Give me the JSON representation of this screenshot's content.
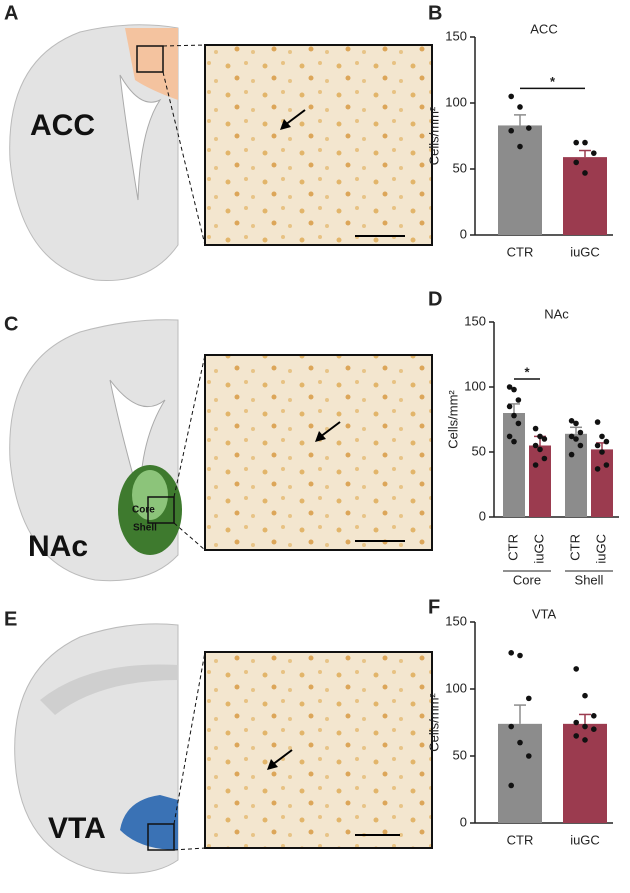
{
  "panels": [
    "A",
    "B",
    "C",
    "D",
    "E",
    "F"
  ],
  "regions": {
    "acc": "ACC",
    "nac": "NAc",
    "core": "Core",
    "shell": "Shell",
    "vta": "VTA"
  },
  "chart_data": [
    {
      "type": "bar",
      "title": "ACC",
      "y_label": "Cells/mm²",
      "categories": [
        "CTR",
        "iuGC"
      ],
      "values": [
        83,
        59
      ],
      "errors": [
        8,
        5
      ],
      "points": [
        [
          105,
          97,
          81,
          79,
          67
        ],
        [
          70,
          70,
          62,
          55,
          47
        ]
      ],
      "colors": [
        "#8c8c8c",
        "#9b3b4f"
      ],
      "ylim": [
        0,
        150
      ],
      "yticks": [
        0,
        50,
        100,
        150
      ],
      "significance": "*"
    },
    {
      "type": "bar",
      "title": "NAc",
      "y_label": "Cells/mm²",
      "categories": [
        "CTR",
        "iuGC",
        "CTR",
        "iuGC"
      ],
      "groups": [
        "Core",
        "Shell"
      ],
      "values": [
        80,
        55,
        64,
        52
      ],
      "errors": [
        7,
        7,
        5,
        5
      ],
      "points": [
        [
          100,
          98,
          90,
          85,
          78,
          72,
          62,
          58
        ],
        [
          68,
          62,
          60,
          55,
          52,
          45,
          40
        ],
        [
          74,
          72,
          65,
          62,
          60,
          55,
          48
        ],
        [
          73,
          62,
          58,
          55,
          50,
          40,
          37
        ]
      ],
      "colors": [
        "#8c8c8c",
        "#9b3b4f",
        "#8c8c8c",
        "#9b3b4f"
      ],
      "ylim": [
        0,
        150
      ],
      "yticks": [
        0,
        50,
        100,
        150
      ],
      "significance": "*"
    },
    {
      "type": "bar",
      "title": "VTA",
      "y_label": "Cells/mm²",
      "categories": [
        "CTR",
        "iuGC"
      ],
      "values": [
        74,
        74
      ],
      "errors": [
        14,
        7
      ],
      "points": [
        [
          127,
          125,
          93,
          72,
          60,
          50,
          28
        ],
        [
          115,
          95,
          80,
          75,
          72,
          70,
          65,
          62
        ]
      ],
      "colors": [
        "#8c8c8c",
        "#9b3b4f"
      ],
      "ylim": [
        0,
        150
      ],
      "yticks": [
        0,
        50,
        100,
        150
      ]
    }
  ]
}
